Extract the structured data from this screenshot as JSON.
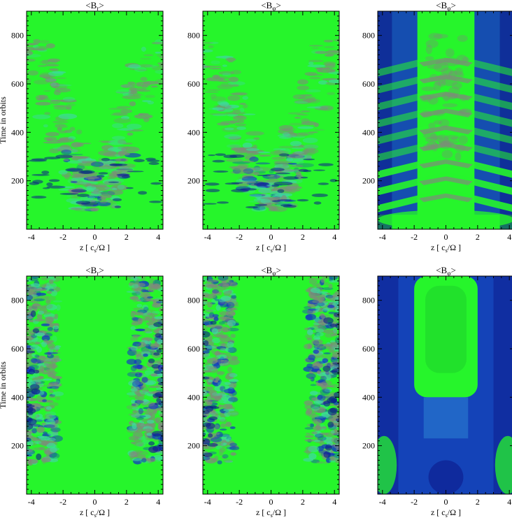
{
  "figure": {
    "colors": {
      "green": "#26f52b",
      "grey": "#7f8a7c",
      "blue": "#1330c8",
      "deep_blue": "#0b1a8a",
      "teal": "#3fd8a0"
    }
  },
  "chart_data": [
    {
      "type": "heatmap",
      "title": "<B_r>",
      "title_base": "<B",
      "title_sub": "r",
      "title_end": ">",
      "xlabel": "z [ c_s/Ω ]",
      "ylabel": "Time in orbits",
      "xlim": [
        -4.3,
        4.3
      ],
      "ylim": [
        0,
        900
      ],
      "xticks": [
        -4,
        -2,
        0,
        2,
        4
      ],
      "yticks": [
        200,
        400,
        600,
        800
      ],
      "pattern": "turbulent-chevron"
    },
    {
      "type": "heatmap",
      "title": "<B_φ>",
      "title_base": "<B",
      "title_sub": "φ",
      "title_end": ">",
      "xlabel": "z [ c_s/Ω ]",
      "ylabel": "",
      "xlim": [
        -4.3,
        4.3
      ],
      "ylim": [
        0,
        900
      ],
      "xticks": [
        -4,
        -2,
        0,
        2,
        4
      ],
      "yticks": [
        200,
        400,
        600,
        800
      ],
      "pattern": "turbulent-chevron"
    },
    {
      "type": "heatmap",
      "title": "<B_φ>",
      "title_base": "<B",
      "title_sub": "φ",
      "title_end": ">",
      "xlabel": "z [ c_s/Ω ]",
      "ylabel": "",
      "xlim": [
        -4.3,
        4.3
      ],
      "ylim": [
        0,
        900
      ],
      "xticks": [
        -4,
        -2,
        0,
        2,
        4
      ],
      "yticks": [
        200,
        400,
        600,
        800
      ],
      "pattern": "butterfly"
    },
    {
      "type": "heatmap",
      "title": "<B_r>",
      "title_base": "<B",
      "title_sub": "r",
      "title_end": ">",
      "xlabel": "z [ c_s/Ω ]",
      "ylabel": "Time in orbits",
      "xlim": [
        -4.3,
        4.3
      ],
      "ylim": [
        0,
        900
      ],
      "xticks": [
        -4,
        -2,
        0,
        2,
        4
      ],
      "yticks": [
        200,
        400,
        600,
        800
      ],
      "pattern": "edge-turbulence"
    },
    {
      "type": "heatmap",
      "title": "<B_φ>",
      "title_base": "<B",
      "title_sub": "φ",
      "title_end": ">",
      "xlabel": "z [ c_s/Ω ]",
      "ylabel": "",
      "xlim": [
        -4.3,
        4.3
      ],
      "ylim": [
        0,
        900
      ],
      "xticks": [
        -4,
        -2,
        0,
        2,
        4
      ],
      "yticks": [
        200,
        400,
        600,
        800
      ],
      "pattern": "edge-turbulence"
    },
    {
      "type": "heatmap",
      "title": "<B_φ>",
      "title_base": "<B",
      "title_sub": "φ",
      "title_end": ">",
      "xlabel": "z [ c_s/Ω ]",
      "ylabel": "",
      "xlim": [
        -4.3,
        4.3
      ],
      "ylim": [
        0,
        900
      ],
      "xticks": [
        -4,
        -2,
        0,
        2,
        4
      ],
      "yticks": [
        200,
        400,
        600,
        800
      ],
      "pattern": "smooth-blue-edges"
    }
  ]
}
